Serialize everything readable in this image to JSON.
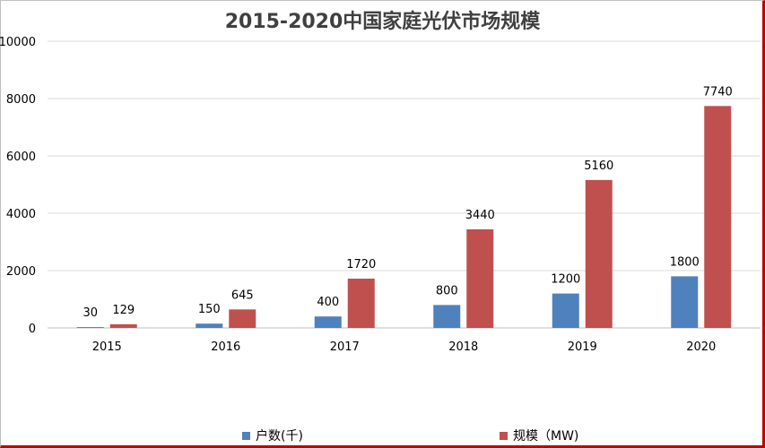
{
  "chart_data": {
    "type": "bar",
    "title": "2015-2020中国家庭光伏市场规模",
    "categories": [
      "2015",
      "2016",
      "2017",
      "2018",
      "2019",
      "2020"
    ],
    "series": [
      {
        "name": "户数(千)",
        "color": "#4f81bd",
        "values": [
          30,
          150,
          400,
          800,
          1200,
          1800
        ]
      },
      {
        "name": "规模（MW)",
        "color": "#c0504d",
        "values": [
          129,
          645,
          1720,
          3440,
          5160,
          7740
        ]
      }
    ],
    "yticks": [
      "0",
      "2000",
      "4000",
      "6000",
      "8000",
      "10000"
    ],
    "ylim": [
      0,
      10000
    ],
    "grid": true,
    "legend": "bottom"
  }
}
